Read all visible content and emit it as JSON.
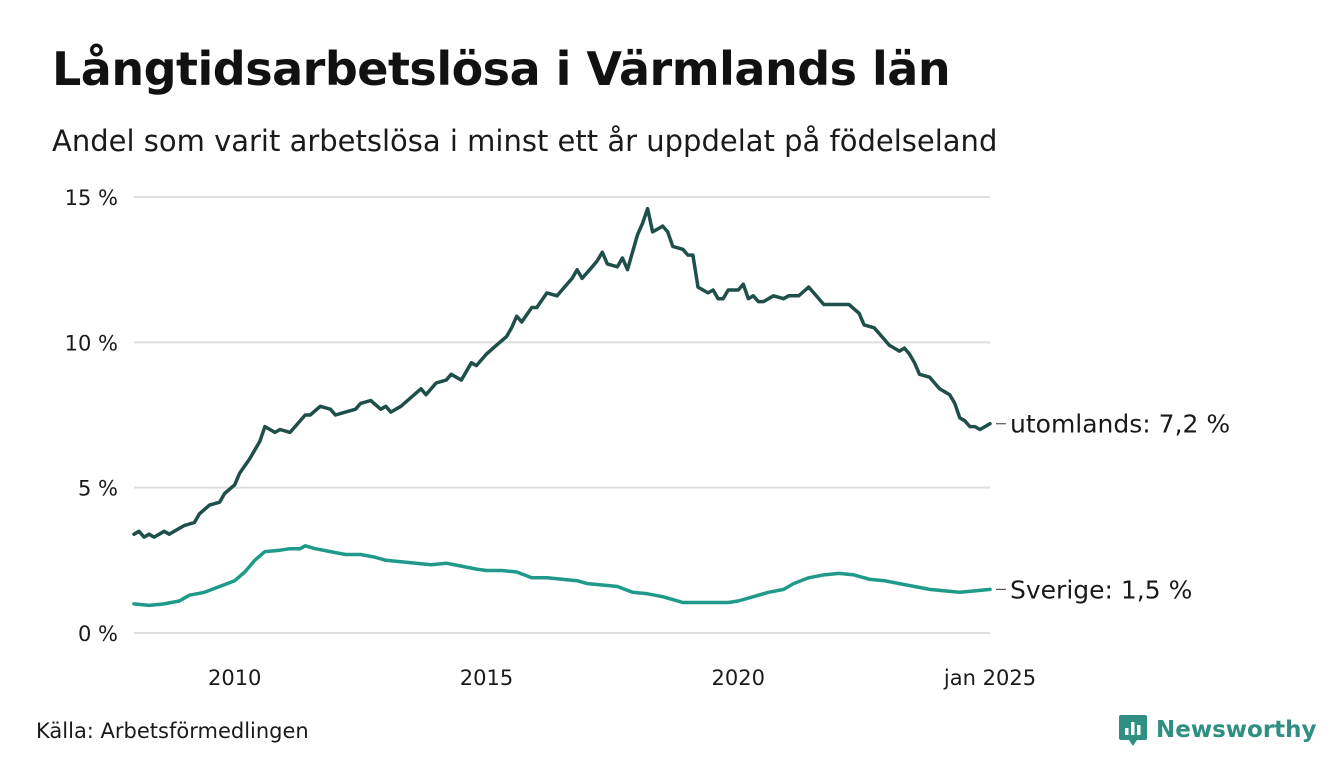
{
  "title": "Långtidsarbetslösa i Värmlands län",
  "subtitle": "Andel som varit arbetslösa i minst ett år uppdelat på födelseland",
  "source": "Källa: Arbetsförmedlingen",
  "brand": "Newsworthy",
  "colors": {
    "utomlands": "#1f4f49",
    "sverige": "#1f9a8a",
    "grid": "#dedede",
    "brand": "#2f8f83"
  },
  "chart_data": {
    "type": "line",
    "title": "Långtidsarbetslösa i Värmlands län",
    "xlabel": "",
    "ylabel": "",
    "x_range": [
      2008.0,
      2025.0
    ],
    "ylim": [
      0,
      15
    ],
    "yticks": [
      0,
      5,
      10,
      15
    ],
    "ytick_labels": [
      "0 %",
      "5 %",
      "10 %",
      "15 %"
    ],
    "xticks": [
      2010,
      2015,
      2020,
      2025
    ],
    "xtick_labels": [
      "2010",
      "2015",
      "2020",
      "jan 2025"
    ],
    "grid": true,
    "series": [
      {
        "name": "utomlands",
        "end_label": "utomlands: 7,2 %",
        "points": [
          [
            2008.0,
            3.4
          ],
          [
            2008.1,
            3.5
          ],
          [
            2008.2,
            3.3
          ],
          [
            2008.3,
            3.4
          ],
          [
            2008.4,
            3.3
          ],
          [
            2008.5,
            3.4
          ],
          [
            2008.6,
            3.5
          ],
          [
            2008.7,
            3.4
          ],
          [
            2008.9,
            3.6
          ],
          [
            2009.0,
            3.7
          ],
          [
            2009.2,
            3.8
          ],
          [
            2009.3,
            4.1
          ],
          [
            2009.5,
            4.4
          ],
          [
            2009.7,
            4.5
          ],
          [
            2009.8,
            4.8
          ],
          [
            2010.0,
            5.1
          ],
          [
            2010.1,
            5.5
          ],
          [
            2010.3,
            6.0
          ],
          [
            2010.5,
            6.6
          ],
          [
            2010.6,
            7.1
          ],
          [
            2010.8,
            6.9
          ],
          [
            2010.9,
            7.0
          ],
          [
            2011.1,
            6.9
          ],
          [
            2011.2,
            7.1
          ],
          [
            2011.4,
            7.5
          ],
          [
            2011.5,
            7.5
          ],
          [
            2011.7,
            7.8
          ],
          [
            2011.9,
            7.7
          ],
          [
            2012.0,
            7.5
          ],
          [
            2012.2,
            7.6
          ],
          [
            2012.4,
            7.7
          ],
          [
            2012.5,
            7.9
          ],
          [
            2012.7,
            8.0
          ],
          [
            2012.9,
            7.7
          ],
          [
            2013.0,
            7.8
          ],
          [
            2013.1,
            7.6
          ],
          [
            2013.3,
            7.8
          ],
          [
            2013.5,
            8.1
          ],
          [
            2013.7,
            8.4
          ],
          [
            2013.8,
            8.2
          ],
          [
            2014.0,
            8.6
          ],
          [
            2014.2,
            8.7
          ],
          [
            2014.3,
            8.9
          ],
          [
            2014.5,
            8.7
          ],
          [
            2014.7,
            9.3
          ],
          [
            2014.8,
            9.2
          ],
          [
            2015.0,
            9.6
          ],
          [
            2015.2,
            9.9
          ],
          [
            2015.4,
            10.2
          ],
          [
            2015.5,
            10.5
          ],
          [
            2015.6,
            10.9
          ],
          [
            2015.7,
            10.7
          ],
          [
            2015.9,
            11.2
          ],
          [
            2016.0,
            11.2
          ],
          [
            2016.2,
            11.7
          ],
          [
            2016.4,
            11.6
          ],
          [
            2016.5,
            11.8
          ],
          [
            2016.7,
            12.2
          ],
          [
            2016.8,
            12.5
          ],
          [
            2016.9,
            12.2
          ],
          [
            2017.1,
            12.6
          ],
          [
            2017.2,
            12.8
          ],
          [
            2017.3,
            13.1
          ],
          [
            2017.4,
            12.7
          ],
          [
            2017.6,
            12.6
          ],
          [
            2017.7,
            12.9
          ],
          [
            2017.8,
            12.5
          ],
          [
            2017.9,
            13.1
          ],
          [
            2018.0,
            13.7
          ],
          [
            2018.1,
            14.1
          ],
          [
            2018.2,
            14.6
          ],
          [
            2018.3,
            13.8
          ],
          [
            2018.4,
            13.9
          ],
          [
            2018.5,
            14.0
          ],
          [
            2018.6,
            13.8
          ],
          [
            2018.7,
            13.3
          ],
          [
            2018.9,
            13.2
          ],
          [
            2019.0,
            13.0
          ],
          [
            2019.1,
            13.0
          ],
          [
            2019.2,
            11.9
          ],
          [
            2019.4,
            11.7
          ],
          [
            2019.5,
            11.8
          ],
          [
            2019.6,
            11.5
          ],
          [
            2019.7,
            11.5
          ],
          [
            2019.8,
            11.8
          ],
          [
            2020.0,
            11.8
          ],
          [
            2020.1,
            12.0
          ],
          [
            2020.2,
            11.5
          ],
          [
            2020.3,
            11.6
          ],
          [
            2020.4,
            11.4
          ],
          [
            2020.5,
            11.4
          ],
          [
            2020.7,
            11.6
          ],
          [
            2020.9,
            11.5
          ],
          [
            2021.0,
            11.6
          ],
          [
            2021.2,
            11.6
          ],
          [
            2021.4,
            11.9
          ],
          [
            2021.5,
            11.7
          ],
          [
            2021.7,
            11.3
          ],
          [
            2021.9,
            11.3
          ],
          [
            2022.0,
            11.3
          ],
          [
            2022.2,
            11.3
          ],
          [
            2022.4,
            11.0
          ],
          [
            2022.5,
            10.6
          ],
          [
            2022.7,
            10.5
          ],
          [
            2022.9,
            10.1
          ],
          [
            2023.0,
            9.9
          ],
          [
            2023.2,
            9.7
          ],
          [
            2023.3,
            9.8
          ],
          [
            2023.4,
            9.6
          ],
          [
            2023.5,
            9.3
          ],
          [
            2023.6,
            8.9
          ],
          [
            2023.8,
            8.8
          ],
          [
            2023.9,
            8.6
          ],
          [
            2024.0,
            8.4
          ],
          [
            2024.2,
            8.2
          ],
          [
            2024.3,
            7.9
          ],
          [
            2024.4,
            7.4
          ],
          [
            2024.5,
            7.3
          ],
          [
            2024.6,
            7.1
          ],
          [
            2024.7,
            7.1
          ],
          [
            2024.8,
            7.0
          ],
          [
            2024.9,
            7.1
          ],
          [
            2025.0,
            7.2
          ]
        ]
      },
      {
        "name": "Sverige",
        "end_label": "Sverige: 1,5 %",
        "points": [
          [
            2008.0,
            1.0
          ],
          [
            2008.3,
            0.95
          ],
          [
            2008.6,
            1.0
          ],
          [
            2008.9,
            1.1
          ],
          [
            2009.1,
            1.3
          ],
          [
            2009.4,
            1.4
          ],
          [
            2009.7,
            1.6
          ],
          [
            2010.0,
            1.8
          ],
          [
            2010.2,
            2.1
          ],
          [
            2010.4,
            2.5
          ],
          [
            2010.6,
            2.8
          ],
          [
            2010.9,
            2.85
          ],
          [
            2011.1,
            2.9
          ],
          [
            2011.3,
            2.9
          ],
          [
            2011.4,
            3.0
          ],
          [
            2011.6,
            2.9
          ],
          [
            2011.9,
            2.8
          ],
          [
            2012.2,
            2.7
          ],
          [
            2012.5,
            2.7
          ],
          [
            2012.8,
            2.6
          ],
          [
            2013.0,
            2.5
          ],
          [
            2013.3,
            2.45
          ],
          [
            2013.6,
            2.4
          ],
          [
            2013.9,
            2.35
          ],
          [
            2014.2,
            2.4
          ],
          [
            2014.5,
            2.3
          ],
          [
            2014.8,
            2.2
          ],
          [
            2015.0,
            2.15
          ],
          [
            2015.3,
            2.15
          ],
          [
            2015.6,
            2.1
          ],
          [
            2015.9,
            1.9
          ],
          [
            2016.2,
            1.9
          ],
          [
            2016.5,
            1.85
          ],
          [
            2016.8,
            1.8
          ],
          [
            2017.0,
            1.7
          ],
          [
            2017.3,
            1.65
          ],
          [
            2017.6,
            1.6
          ],
          [
            2017.9,
            1.4
          ],
          [
            2018.2,
            1.35
          ],
          [
            2018.5,
            1.25
          ],
          [
            2018.7,
            1.15
          ],
          [
            2018.9,
            1.05
          ],
          [
            2019.2,
            1.05
          ],
          [
            2019.5,
            1.05
          ],
          [
            2019.8,
            1.05
          ],
          [
            2020.0,
            1.1
          ],
          [
            2020.3,
            1.25
          ],
          [
            2020.6,
            1.4
          ],
          [
            2020.9,
            1.5
          ],
          [
            2021.1,
            1.7
          ],
          [
            2021.4,
            1.9
          ],
          [
            2021.7,
            2.0
          ],
          [
            2022.0,
            2.05
          ],
          [
            2022.3,
            2.0
          ],
          [
            2022.6,
            1.85
          ],
          [
            2022.9,
            1.8
          ],
          [
            2023.2,
            1.7
          ],
          [
            2023.5,
            1.6
          ],
          [
            2023.8,
            1.5
          ],
          [
            2024.1,
            1.45
          ],
          [
            2024.4,
            1.4
          ],
          [
            2024.7,
            1.45
          ],
          [
            2025.0,
            1.5
          ]
        ]
      }
    ]
  }
}
